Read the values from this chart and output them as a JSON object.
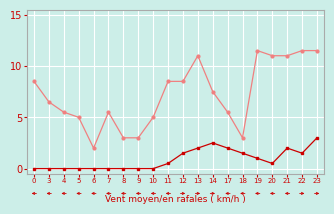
{
  "x_labels": [
    "0",
    "3",
    "4",
    "5",
    "6",
    "7",
    "8",
    "9",
    "10",
    "11",
    "12",
    "13",
    "14",
    "17",
    "18",
    "19",
    "20",
    "21",
    "22",
    "23"
  ],
  "y_rafales": [
    8.5,
    6.5,
    5.5,
    5.0,
    2.0,
    5.5,
    3.0,
    3.0,
    5.0,
    8.5,
    8.5,
    11.0,
    7.5,
    5.5,
    3.0,
    11.5,
    11.0,
    11.0,
    11.5,
    11.5
  ],
  "y_moyen": [
    0.0,
    0.0,
    0.0,
    0.0,
    0.0,
    0.0,
    0.0,
    0.0,
    0.0,
    0.5,
    1.5,
    2.0,
    2.5,
    2.0,
    1.5,
    1.0,
    0.5,
    2.0,
    1.5,
    3.0
  ],
  "color_rafales": "#f08080",
  "color_moyen": "#cc0000",
  "color_arrow": "#cc0000",
  "background": "#cceee8",
  "grid_color": "#ffffff",
  "ylim": [
    0,
    15
  ],
  "yticks": [
    0,
    5,
    10,
    15
  ],
  "xlabel": "Vent moyen/en rafales ( km/h )",
  "xlabel_color": "#cc0000",
  "tick_color": "#cc0000",
  "arrow_dirs": [
    -1,
    -1,
    -1,
    -1,
    -1,
    -1,
    -1,
    -1,
    -1,
    -1,
    1,
    1,
    1,
    -1,
    -1,
    -1,
    -1,
    -1,
    1,
    1
  ]
}
